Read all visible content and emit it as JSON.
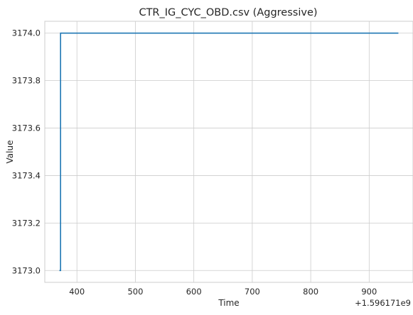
{
  "chart_data": {
    "type": "line",
    "title": "CTR_IG_CYC_OBD.csv (Aggressive)",
    "xlabel": "Time",
    "ylabel": "Value",
    "x_offset_label": "+1.596171e9",
    "xlim": [
      345,
      975
    ],
    "ylim": [
      3172.95,
      3174.05
    ],
    "xticks": [
      400,
      500,
      600,
      700,
      800,
      900
    ],
    "yticks": [
      3173.0,
      3173.2,
      3173.4,
      3173.6,
      3173.8,
      3174.0
    ],
    "ytick_labels": [
      "3173.0",
      "3173.2",
      "3173.4",
      "3173.6",
      "3173.8",
      "3174.0"
    ],
    "grid": true,
    "series": [
      {
        "color": "#1f77b4",
        "x": [
          370,
          372,
          372,
          950
        ],
        "y": [
          3173.0,
          3173.0,
          3174.0,
          3174.0
        ]
      }
    ]
  }
}
